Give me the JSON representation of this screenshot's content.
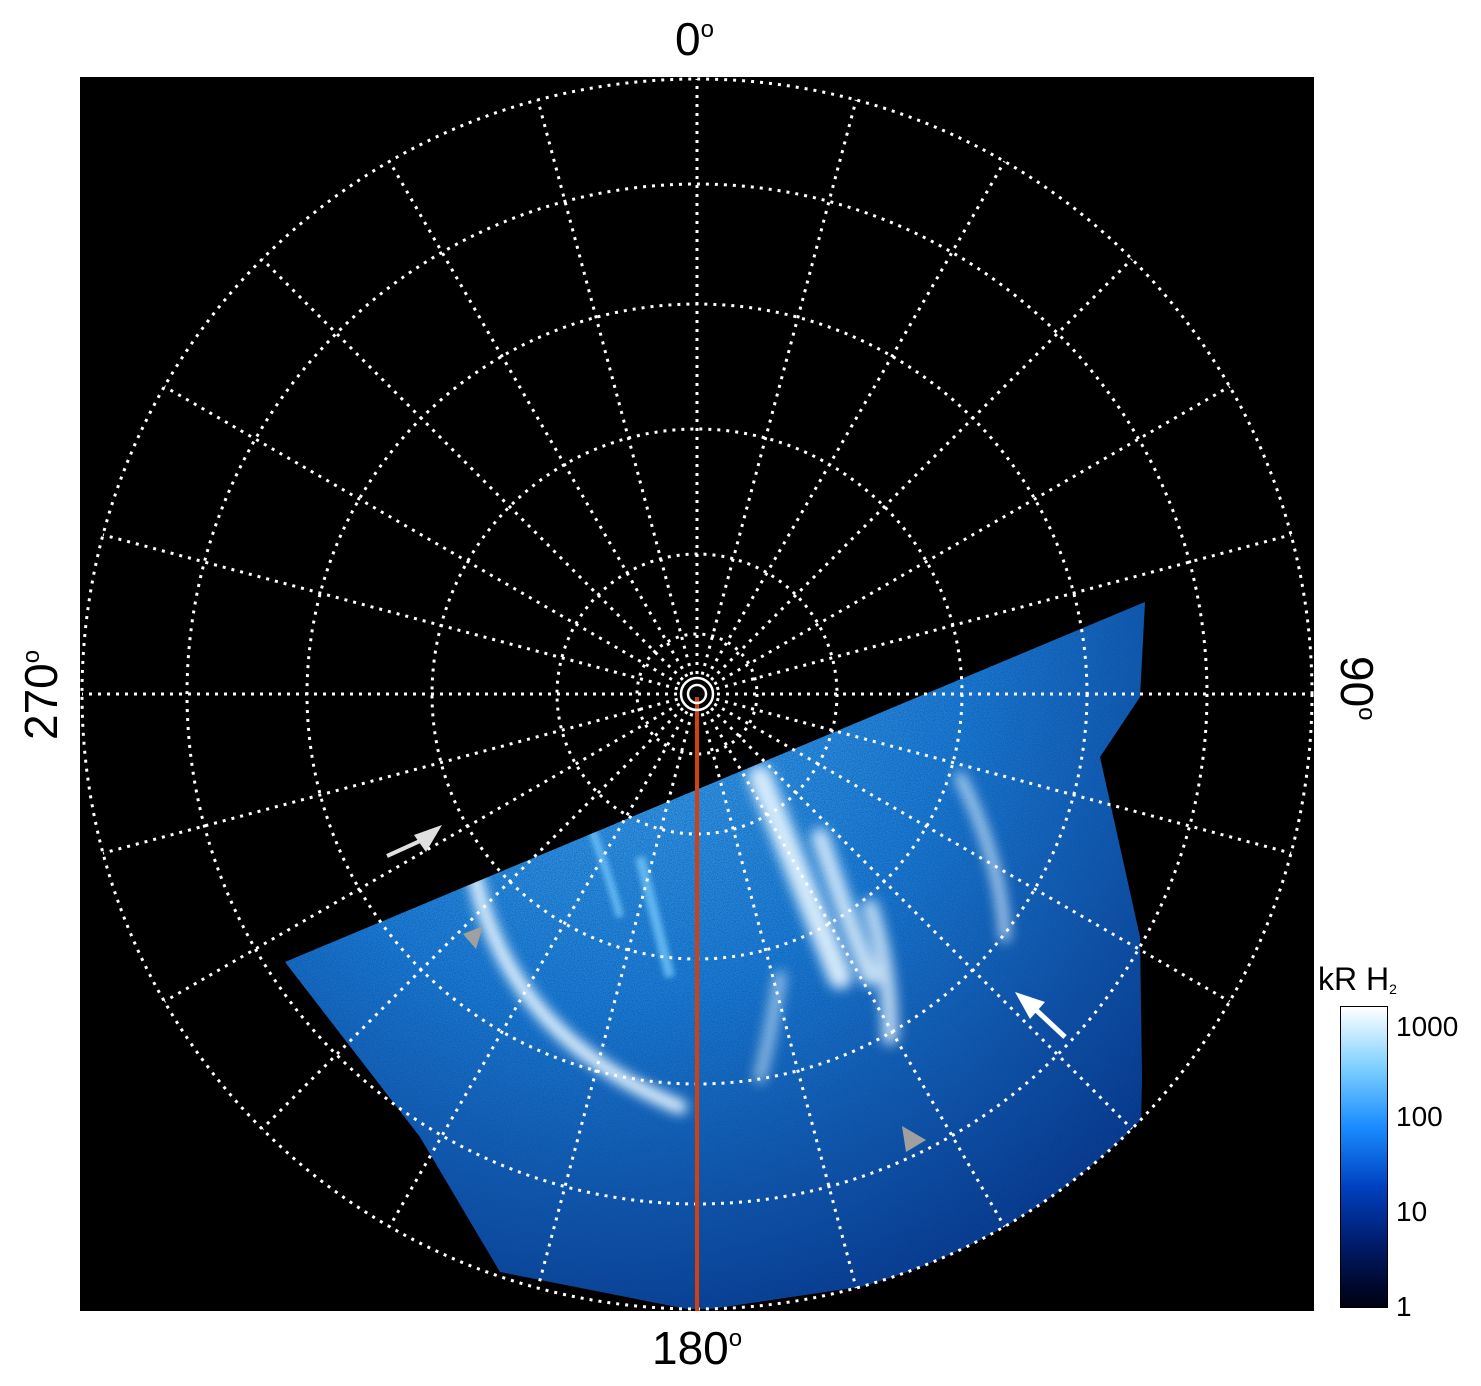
{
  "labels": {
    "top": "0",
    "bottom": "180",
    "left": "270",
    "right": "90",
    "degree": "o"
  },
  "colorbar": {
    "title": "kR H",
    "title_sub": "2",
    "ticks": [
      "1000",
      "100",
      "10",
      "1"
    ],
    "colors": [
      "#000010",
      "#001a66",
      "#0040c0",
      "#1a8cff",
      "#7fd0ff",
      "#ffffff"
    ]
  },
  "colors": {
    "background": "#000000",
    "grid": "#ffffff",
    "meridian": "#d04010",
    "aurora_bright": "#e8f6ff",
    "aurora_mid": "#3aa0ff",
    "aurora_dim": "#0a3aa8"
  }
}
